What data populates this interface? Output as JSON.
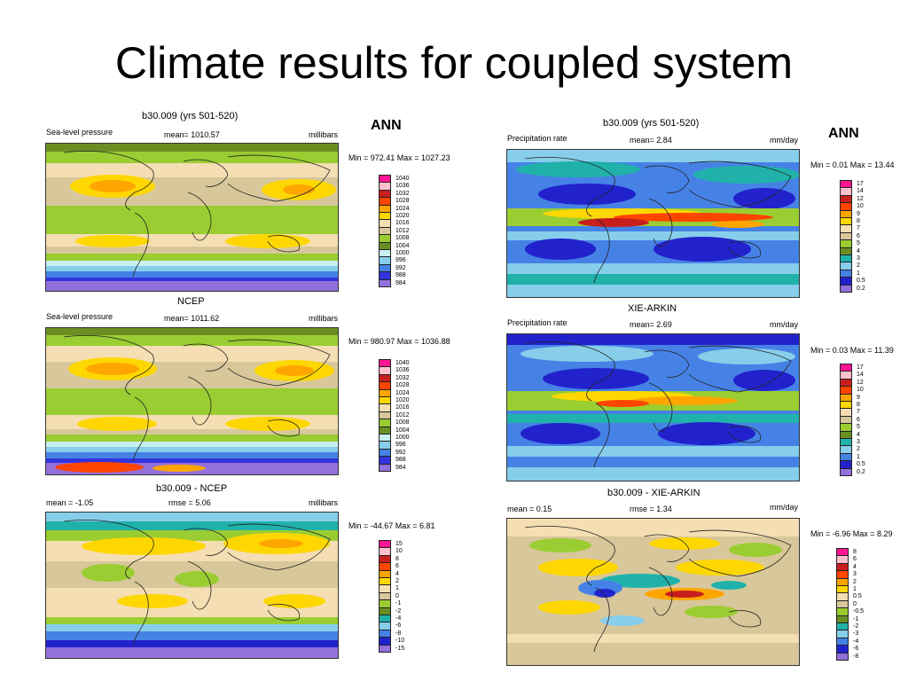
{
  "slide_title": "Climate results for coupled system",
  "annual_label": "ANN",
  "left": {
    "p1": {
      "title": "b30.009 (yrs 501-520)",
      "var": "Sea-level pressure",
      "mean": "mean= 1010.57",
      "units": "millibars",
      "minmax": "Min = 972.41 Max = 1027.23"
    },
    "p2": {
      "title": "NCEP",
      "var": "Sea-level pressure",
      "mean": "mean= 1011.62",
      "units": "millibars",
      "minmax": "Min = 980.97 Max = 1036.88"
    },
    "p3": {
      "title": "b30.009 - NCEP",
      "mean": "mean =  -1.05",
      "rmse": "rmse =   5.06",
      "units": "millibars",
      "minmax": "Min = -44.67 Max =   6.81"
    }
  },
  "right": {
    "p1": {
      "title": "b30.009 (yrs 501-520)",
      "var": "Precipitation rate",
      "mean": "mean=   2.84",
      "units": "mm/day",
      "minmax": "Min =   0.01 Max =  13.44"
    },
    "p2": {
      "title": "XIE-ARKIN",
      "var": "Precipitation rate",
      "mean": "mean=   2.69",
      "units": "mm/day",
      "minmax": "Min =   0.03 Max =  11.39"
    },
    "p3": {
      "title": "b30.009 - XIE-ARKIN",
      "mean": "mean =  0.15",
      "rmse": "rmse =   1.34",
      "units": "mm/day",
      "minmax": "Min =  -6.96 Max =   8.29"
    }
  },
  "legends": {
    "slp": {
      "labels": [
        "1040",
        "1036",
        "1032",
        "1028",
        "1024",
        "1020",
        "1016",
        "1012",
        "1008",
        "1004",
        "1000",
        "996",
        "992",
        "988",
        "984"
      ],
      "colors": [
        "#ff1493",
        "#ffc0cb",
        "#c81e1e",
        "#ff4500",
        "#ffa500",
        "#ffd700",
        "#f5deb3",
        "#d8c79a",
        "#9acd32",
        "#6b8e23",
        "#c8f0f0",
        "#87ceeb",
        "#4682e6",
        "#3333dd",
        "#9370db"
      ]
    },
    "prect": {
      "labels": [
        "17",
        "14",
        "12",
        "10",
        "9",
        "8",
        "7",
        "6",
        "5",
        "4",
        "3",
        "2",
        "1",
        "0.5",
        "0.2"
      ],
      "colors": [
        "#ff1493",
        "#ffc0cb",
        "#c81e1e",
        "#ff4500",
        "#ffa500",
        "#ffd700",
        "#f5deb3",
        "#d8c79a",
        "#9acd32",
        "#6b8e23",
        "#20b2aa",
        "#87ceeb",
        "#4682e6",
        "#2222cc",
        "#9370db"
      ]
    },
    "slp_diff": {
      "labels": [
        "15",
        "10",
        "8",
        "6",
        "4",
        "2",
        "1",
        "0",
        "-1",
        "-2",
        "-4",
        "-6",
        "-8",
        "-10",
        "-15"
      ],
      "colors": [
        "#ff1493",
        "#ffc0cb",
        "#c81e1e",
        "#ff4500",
        "#ffa500",
        "#ffd700",
        "#f5deb3",
        "#d8c79a",
        "#9acd32",
        "#6b8e23",
        "#20b2aa",
        "#87ceeb",
        "#4682e6",
        "#2222cc",
        "#9370db"
      ]
    },
    "prect_diff": {
      "labels": [
        "8",
        "6",
        "4",
        "3",
        "2",
        "1",
        "0.5",
        "0",
        "-0.5",
        "-1",
        "-2",
        "-3",
        "-4",
        "-6",
        "-8"
      ],
      "colors": [
        "#ff1493",
        "#ffc0cb",
        "#c81e1e",
        "#ff4500",
        "#ffa500",
        "#ffd700",
        "#f5deb3",
        "#d8c79a",
        "#9acd32",
        "#6b8e23",
        "#20b2aa",
        "#87ceeb",
        "#4682e6",
        "#2222cc",
        "#9370db"
      ]
    }
  },
  "chart_data": [
    {
      "type": "heatmap",
      "title": "b30.009 (yrs 501-520)",
      "variable": "Sea-level pressure",
      "units": "millibars",
      "mean": 1010.57,
      "min": 972.41,
      "max": 1027.23,
      "season": "ANN",
      "contour_levels": [
        984,
        988,
        992,
        996,
        1000,
        1004,
        1008,
        1012,
        1016,
        1020,
        1024,
        1028,
        1032,
        1036,
        1040
      ]
    },
    {
      "type": "heatmap",
      "title": "NCEP",
      "variable": "Sea-level pressure",
      "units": "millibars",
      "mean": 1011.62,
      "min": 980.97,
      "max": 1036.88,
      "season": "ANN",
      "contour_levels": [
        984,
        988,
        992,
        996,
        1000,
        1004,
        1008,
        1012,
        1016,
        1020,
        1024,
        1028,
        1032,
        1036,
        1040
      ]
    },
    {
      "type": "heatmap",
      "title": "b30.009 - NCEP",
      "units": "millibars",
      "mean": -1.05,
      "rmse": 5.06,
      "min": -44.67,
      "max": 6.81,
      "season": "ANN",
      "contour_levels": [
        -15,
        -10,
        -8,
        -6,
        -4,
        -2,
        -1,
        0,
        1,
        2,
        4,
        6,
        8,
        10,
        15
      ]
    },
    {
      "type": "heatmap",
      "title": "b30.009 (yrs 501-520)",
      "variable": "Precipitation rate",
      "units": "mm/day",
      "mean": 2.84,
      "min": 0.01,
      "max": 13.44,
      "season": "ANN",
      "contour_levels": [
        0.2,
        0.5,
        1,
        2,
        3,
        4,
        5,
        6,
        7,
        8,
        9,
        10,
        12,
        14,
        17
      ]
    },
    {
      "type": "heatmap",
      "title": "XIE-ARKIN",
      "variable": "Precipitation rate",
      "units": "mm/day",
      "mean": 2.69,
      "min": 0.03,
      "max": 11.39,
      "season": "ANN",
      "contour_levels": [
        0.2,
        0.5,
        1,
        2,
        3,
        4,
        5,
        6,
        7,
        8,
        9,
        10,
        12,
        14,
        17
      ]
    },
    {
      "type": "heatmap",
      "title": "b30.009 - XIE-ARKIN",
      "units": "mm/day",
      "mean": 0.15,
      "rmse": 1.34,
      "min": -6.96,
      "max": 8.29,
      "season": "ANN",
      "contour_levels": [
        -8,
        -6,
        -4,
        -3,
        -2,
        -1,
        -0.5,
        0,
        0.5,
        1,
        2,
        3,
        4,
        6,
        8
      ]
    }
  ]
}
